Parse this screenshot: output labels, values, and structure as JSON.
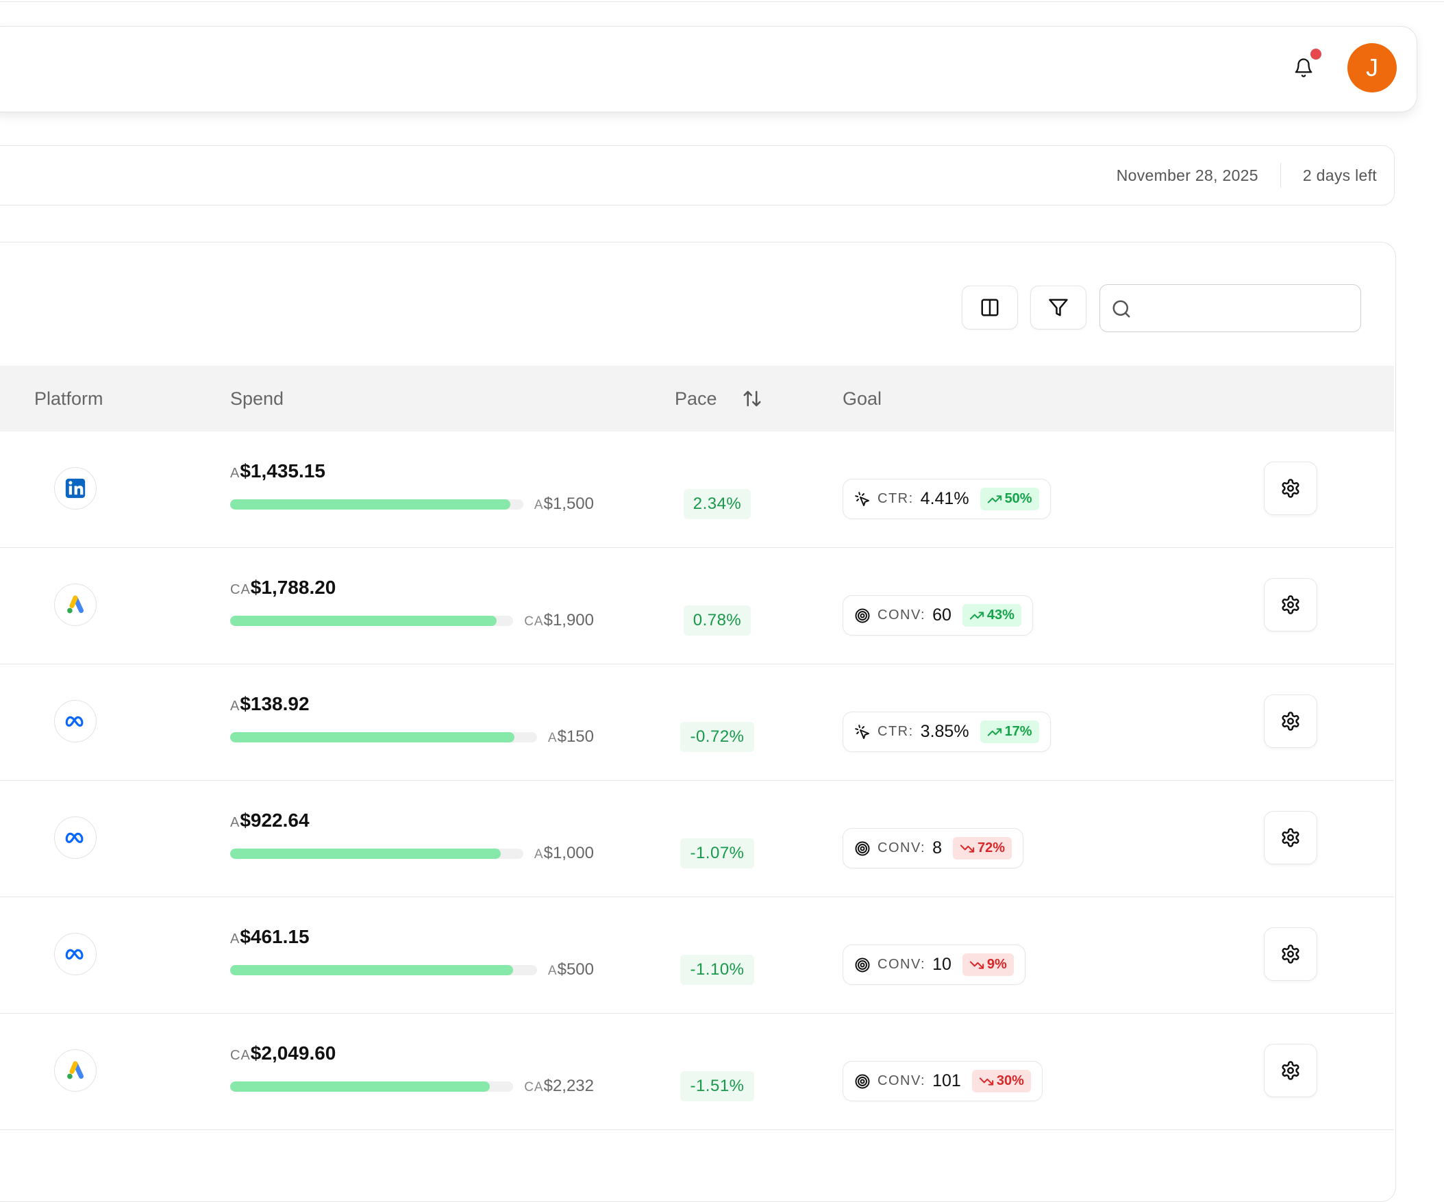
{
  "header": {
    "avatar": "J"
  },
  "date_bar": {
    "date": "November 28, 2025",
    "remaining": "2 days left"
  },
  "table": {
    "columns": [
      "Platform",
      "Spend",
      "Pace",
      "Goal"
    ],
    "rows": [
      {
        "spend_currency": "A",
        "spend": "$1,435.15",
        "budget_currency": "A",
        "budget": "$1,500",
        "pace": "2.34%",
        "goal_metric": "CTR:",
        "goal_value": "4.41%",
        "goal_change": "50%"
      },
      {
        "spend_currency": "CA",
        "spend": "$1,788.20",
        "budget_currency": "CA",
        "budget": "$1,900",
        "pace": "0.78%",
        "goal_metric": "CONV:",
        "goal_value": "60",
        "goal_change": "43%"
      },
      {
        "spend_currency": "A",
        "spend": "$138.92",
        "budget_currency": "A",
        "budget": "$150",
        "pace": "-0.72%",
        "goal_metric": "CTR:",
        "goal_value": "3.85%",
        "goal_change": "17%"
      },
      {
        "spend_currency": "A",
        "spend": "$922.64",
        "budget_currency": "A",
        "budget": "$1,000",
        "pace": "-1.07%",
        "goal_metric": "CONV:",
        "goal_value": "8",
        "goal_change": "72%"
      },
      {
        "spend_currency": "A",
        "spend": "$461.15",
        "budget_currency": "A",
        "budget": "$500",
        "pace": "-1.10%",
        "goal_metric": "CONV:",
        "goal_value": "10",
        "goal_change": "9%"
      },
      {
        "spend_currency": "CA",
        "spend": "$2,049.60",
        "budget_currency": "CA",
        "budget": "$2,232",
        "pace": "-1.51%",
        "goal_metric": "CONV:",
        "goal_value": "101",
        "goal_change": "30%"
      }
    ]
  }
}
